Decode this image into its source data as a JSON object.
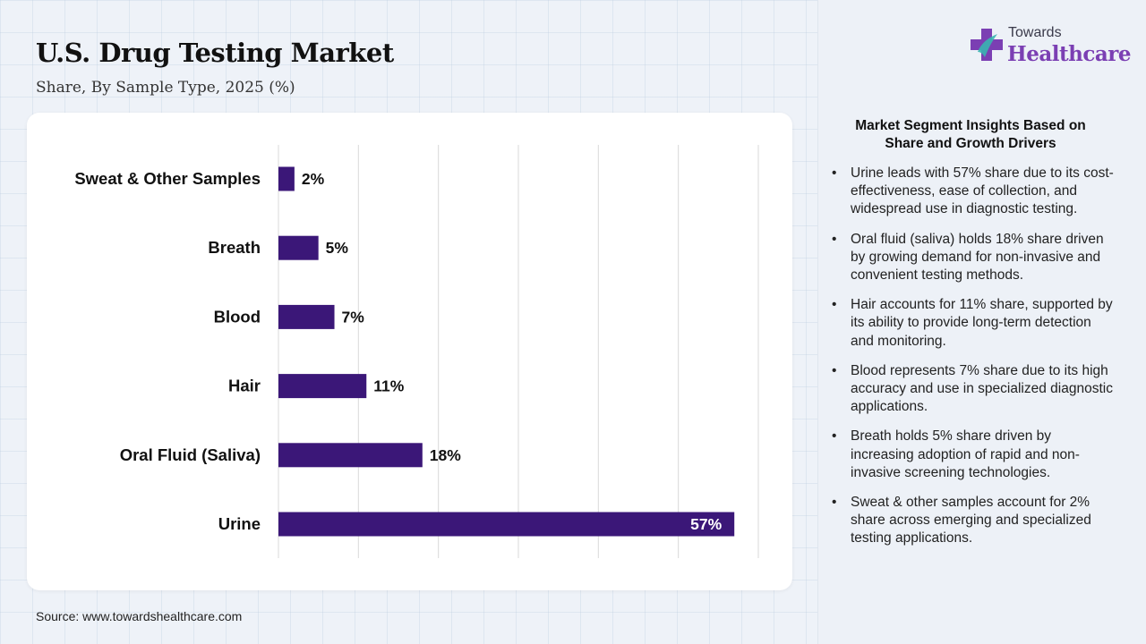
{
  "header": {
    "title": "U.S. Drug Testing Market",
    "subtitle": "Share, By Sample Type, 2025 (%)"
  },
  "chart_data": {
    "type": "bar",
    "orientation": "horizontal",
    "categories": [
      "Sweat & Other Samples",
      "Breath",
      "Blood",
      "Hair",
      "Oral Fluid (Saliva)",
      "Urine"
    ],
    "values": [
      2,
      5,
      7,
      11,
      18,
      57
    ],
    "value_labels": [
      "2%",
      "5%",
      "7%",
      "11%",
      "18%",
      "57%"
    ],
    "title": "U.S. Drug Testing Market",
    "subtitle": "Share, By Sample Type, 2025 (%)",
    "xlabel": "",
    "ylabel": "",
    "xlim": [
      0,
      60
    ],
    "grid": true,
    "bar_color": "#3b1778"
  },
  "footer": {
    "source": "Source: www.towardshealthcare.com"
  },
  "brand": {
    "small": "Towards",
    "big": "Healthcare",
    "icon": "medical-cross-icon"
  },
  "insights": {
    "title": "Market Segment Insights Based on Share and Growth Drivers",
    "items": [
      "Urine leads with 57% share due to its cost-effectiveness, ease of collection, and widespread use in diagnostic testing.",
      "Oral fluid (saliva) holds 18% share driven by growing demand for non-invasive and convenient testing methods.",
      "Hair accounts for 11% share, supported by its ability to provide long-term detection and monitoring.",
      "Blood represents 7% share due to its high accuracy and use in specialized diagnostic applications.",
      "Breath holds 5% share driven by increasing adoption of rapid and non-invasive screening technologies.",
      "Sweat & other samples account for 2% share across emerging and specialized testing applications."
    ]
  },
  "colors": {
    "bar": "#3b1778",
    "brand_purple": "#7b3fb3",
    "brand_teal": "#39b5b0"
  }
}
